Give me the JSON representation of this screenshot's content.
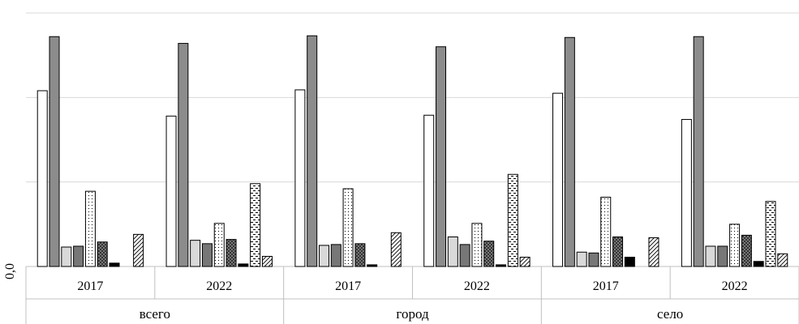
{
  "chart_data": {
    "type": "bar",
    "y_tick_labels": [
      "0,0"
    ],
    "groups": [
      {
        "label": "всего",
        "years": [
          "2017",
          "2022"
        ]
      },
      {
        "label": "город",
        "years": [
          "2017",
          "2022"
        ]
      },
      {
        "label": "село",
        "years": [
          "2017",
          "2022"
        ]
      }
    ],
    "categories": [
      "всего 2017",
      "всего 2022",
      "город 2017",
      "город 2022",
      "село 2017",
      "село 2022"
    ],
    "ylim": [
      0,
      30
    ],
    "grid": true,
    "series": [
      {
        "fill": "white",
        "values": [
          20.8,
          17.8,
          20.9,
          17.9,
          20.5,
          17.4
        ]
      },
      {
        "fill": "dark-gray",
        "values": [
          27.2,
          26.4,
          27.3,
          26.0,
          27.1,
          27.2
        ]
      },
      {
        "fill": "light-gray",
        "values": [
          2.3,
          3.1,
          2.5,
          3.5,
          1.7,
          2.4
        ]
      },
      {
        "fill": "mid-gray",
        "values": [
          2.4,
          2.7,
          2.6,
          2.6,
          1.6,
          2.4
        ]
      },
      {
        "fill": "dotted",
        "values": [
          8.9,
          5.1,
          9.2,
          5.1,
          8.2,
          5.0
        ]
      },
      {
        "fill": "crosshatch",
        "values": [
          2.9,
          3.2,
          2.7,
          3.0,
          3.5,
          3.7
        ]
      },
      {
        "fill": "black",
        "values": [
          0.4,
          0.3,
          0.2,
          0.2,
          1.1,
          0.6
        ]
      },
      {
        "fill": "dashed-dotted",
        "values": [
          0.0,
          9.8,
          0.0,
          10.9,
          0.0,
          7.7
        ]
      },
      {
        "fill": "diagonal-lines",
        "values": [
          3.8,
          1.2,
          4.0,
          1.1,
          3.4,
          1.5
        ]
      }
    ],
    "colors": {
      "white": "#ffffff",
      "dark-gray": "#8c8c8c",
      "light-gray": "#d9d9d9",
      "mid-gray": "#777777",
      "black": "#000000",
      "grid": "#d9d9d9",
      "axis": "#c0c0c0"
    }
  }
}
